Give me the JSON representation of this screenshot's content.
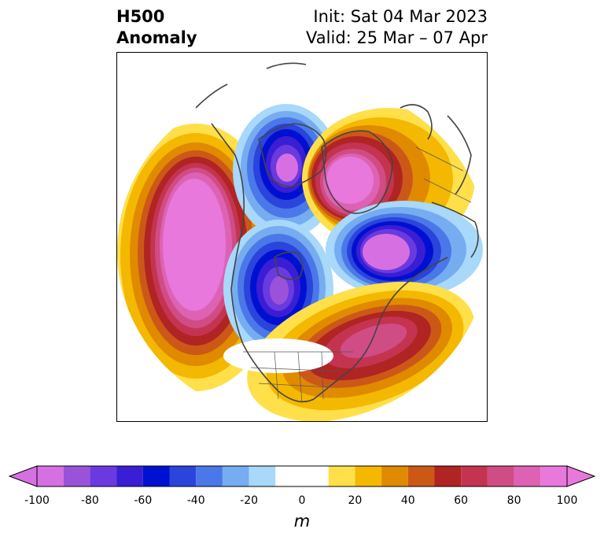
{
  "title": {
    "left_line1": "H500",
    "left_line2": "Anomaly",
    "right_line1": "Init: Sat 04 Mar 2023",
    "right_line2": "Valid: 25 Mar – 07 Apr"
  },
  "map": {
    "field": "500 hPa geopotential height anomaly",
    "projection": "polar-stereographic-north-america"
  },
  "colorbar": {
    "unit_label": "m",
    "ticks": [
      "-100",
      "-80",
      "-60",
      "-40",
      "-20",
      "0",
      "20",
      "40",
      "60",
      "80",
      "100"
    ],
    "levels": [
      -100,
      -90,
      -80,
      -70,
      -60,
      -50,
      -40,
      -30,
      -20,
      -10,
      10,
      20,
      30,
      40,
      50,
      60,
      70,
      80,
      90,
      100
    ],
    "min_extend_color": "#d670e2",
    "max_extend_color": "#e878dc",
    "colors": [
      "#d670e2",
      "#9a52da",
      "#6a3ae0",
      "#3a1ed4",
      "#0010d0",
      "#2a44dc",
      "#4a78e8",
      "#76acf0",
      "#a8d8fa",
      "#ffffff",
      "#ffe04a",
      "#f4b800",
      "#e08a00",
      "#cc5818",
      "#b02424",
      "#c43450",
      "#d04c84",
      "#de62b4",
      "#e878dc"
    ]
  }
}
